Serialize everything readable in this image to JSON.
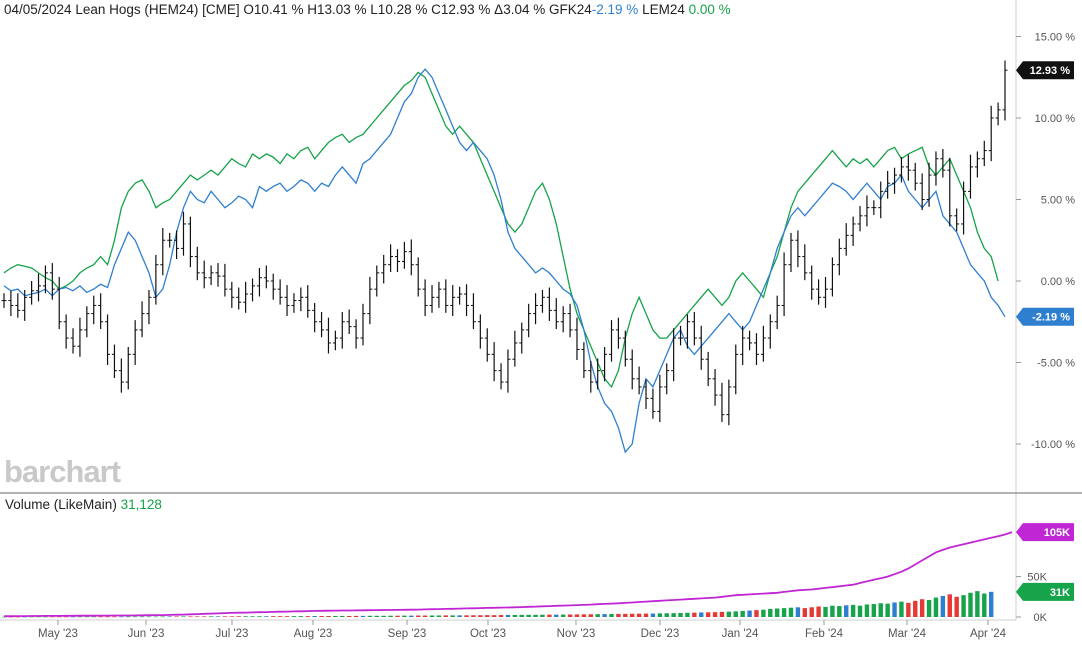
{
  "header": {
    "date": "04/05/2024",
    "name": "Lean Hogs (HEM24) [CME]",
    "open": "O10.41 %",
    "high": "H13.03 %",
    "low": "L10.28 %",
    "close": "C12.93 %",
    "change": "Δ3.04 %",
    "cmp1_label": "GFK24",
    "cmp1_value": "-2.19 %",
    "cmp2_label": "LEM24",
    "cmp2_value": "0.00 %"
  },
  "brand": "barchart",
  "volume_header": {
    "label": "Volume",
    "qualifier": "(LikeMain)",
    "value": "31,128"
  },
  "colors": {
    "price_bars": "#111111",
    "gfk24": "#2f7fd0",
    "lem24": "#16a34a",
    "open_interest": "#c026d3",
    "volume_up": "#16a34a",
    "volume_down": "#e53935",
    "volume_neutral": "#2f7fd0"
  },
  "chart_data": [
    {
      "type": "line",
      "name": "price-panel",
      "y_unit": "%",
      "ylim": [
        -12,
        16
      ],
      "y_ticks": [
        15,
        10,
        5,
        0,
        -5,
        -10
      ],
      "y_tick_labels": [
        "15.00 %",
        "10.00 %",
        "5.00 %",
        "0.00 %",
        "-5.00 %",
        "-10.00 %"
      ],
      "x_tick_labels": [
        "May '23",
        "Jun '23",
        "Jul '23",
        "Aug '23",
        "Sep '23",
        "Oct '23",
        "Nov '23",
        "Dec '23",
        "Jan '24",
        "Feb '24",
        "Mar '24",
        "Apr '24"
      ],
      "series": [
        {
          "name": "HEM24",
          "style": "ohlc",
          "values": [
            -1.2,
            -1.5,
            -1.8,
            -1.0,
            -0.6,
            -0.3,
            0.5,
            -0.5,
            -2.5,
            -3.5,
            -4.0,
            -3.0,
            -2.0,
            -1.5,
            -2.5,
            -4.5,
            -5.5,
            -6.2,
            -4.5,
            -3.0,
            -2.0,
            -1.0,
            1.0,
            2.5,
            2.5,
            2.0,
            3.5,
            1.5,
            0.5,
            0.2,
            0.5,
            0.3,
            -0.5,
            -1.0,
            -1.3,
            -0.8,
            -0.3,
            0.2,
            0.0,
            -0.5,
            -1.0,
            -1.5,
            -1.2,
            -1.0,
            -1.8,
            -2.5,
            -3.0,
            -3.8,
            -3.5,
            -2.5,
            -2.8,
            -3.5,
            -2.0,
            -0.5,
            0.5,
            1.0,
            1.5,
            1.2,
            1.8,
            1.0,
            -0.5,
            -1.5,
            -1.0,
            -0.5,
            -1.5,
            -1.0,
            -0.8,
            -1.5,
            -2.5,
            -3.5,
            -4.5,
            -5.5,
            -6.2,
            -4.8,
            -3.8,
            -3.0,
            -2.0,
            -1.5,
            -1.0,
            -1.8,
            -2.5,
            -2.0,
            -3.0,
            -4.2,
            -5.5,
            -6.2,
            -5.5,
            -4.5,
            -3.0,
            -3.5,
            -4.8,
            -6.0,
            -6.5,
            -7.2,
            -8.0,
            -6.5,
            -5.5,
            -3.5,
            -3.5,
            -2.5,
            -3.5,
            -4.8,
            -6.0,
            -7.0,
            -8.2,
            -6.5,
            -4.5,
            -3.5,
            -3.8,
            -4.5,
            -3.5,
            -2.5,
            -1.5,
            1.0,
            2.5,
            1.5,
            0.5,
            -0.5,
            -1.0,
            -0.5,
            1.0,
            2.0,
            2.8,
            3.5,
            4.0,
            4.5,
            4.5,
            5.5,
            6.0,
            6.5,
            7.0,
            6.8,
            6.0,
            5.0,
            6.5,
            7.5,
            6.8,
            4.0,
            3.5,
            5.5,
            7.0,
            7.5,
            8.0,
            10.0,
            10.5,
            12.93
          ],
          "last_label": "12.93 %"
        },
        {
          "name": "GFK24",
          "style": "line",
          "values": [
            -0.3,
            -0.6,
            -0.5,
            -0.9,
            -0.8,
            -0.7,
            -0.5,
            -0.9,
            -0.5,
            -0.4,
            -0.6,
            -0.3,
            -0.7,
            -0.5,
            -0.2,
            -0.4,
            1.0,
            2.0,
            3.0,
            2.5,
            1.5,
            0.5,
            -1.0,
            -0.5,
            1.0,
            3.0,
            4.5,
            5.5,
            5.0,
            4.8,
            5.5,
            5.0,
            4.5,
            4.8,
            5.2,
            5.0,
            4.5,
            5.8,
            5.5,
            5.8,
            6.0,
            5.5,
            5.8,
            6.2,
            6.0,
            5.5,
            6.0,
            5.8,
            6.5,
            7.0,
            6.5,
            6.0,
            7.2,
            7.5,
            8.0,
            8.5,
            9.0,
            10.0,
            11.0,
            11.5,
            12.5,
            13.0,
            12.5,
            11.5,
            10.5,
            9.5,
            8.5,
            8.0,
            8.5,
            8.0,
            7.5,
            6.5,
            5.0,
            3.0,
            2.0,
            1.5,
            1.0,
            0.5,
            0.8,
            0.5,
            0.0,
            -0.5,
            -0.8,
            -1.5,
            -3.0,
            -5.0,
            -6.5,
            -7.5,
            -8.0,
            -9.0,
            -10.5,
            -10.0,
            -7.5,
            -6.0,
            -6.5,
            -5.5,
            -4.5,
            -3.5,
            -3.0,
            -4.0,
            -4.5,
            -4.0,
            -3.5,
            -3.0,
            -2.5,
            -2.0,
            -2.5,
            -3.0,
            -2.5,
            -1.5,
            -0.5,
            0.5,
            2.0,
            3.0,
            4.0,
            4.5,
            4.0,
            4.5,
            5.0,
            5.5,
            6.0,
            5.8,
            5.5,
            5.0,
            5.5,
            6.0,
            5.5,
            5.0,
            5.8,
            6.0,
            6.5,
            5.5,
            5.0,
            4.5,
            5.0,
            5.5,
            4.0,
            3.5,
            3.0,
            2.0,
            1.0,
            0.5,
            0.0,
            -1.0,
            -1.5,
            -2.19
          ],
          "last_label": "-2.19 %"
        },
        {
          "name": "LEM24",
          "style": "line",
          "values": [
            0.5,
            0.8,
            1.0,
            0.9,
            0.8,
            0.5,
            0.2,
            0.0,
            -0.5,
            -0.3,
            0.0,
            0.5,
            0.8,
            1.0,
            1.5,
            1.0,
            2.5,
            4.5,
            5.5,
            6.0,
            6.2,
            5.5,
            4.5,
            4.8,
            5.0,
            5.5,
            6.0,
            6.5,
            6.2,
            6.5,
            6.8,
            6.5,
            7.0,
            7.5,
            7.2,
            7.0,
            7.8,
            7.5,
            7.8,
            7.6,
            7.2,
            7.8,
            7.5,
            8.0,
            8.2,
            7.5,
            8.0,
            8.5,
            8.8,
            9.0,
            8.5,
            8.8,
            9.0,
            9.5,
            10.0,
            10.5,
            11.0,
            11.5,
            12.0,
            12.3,
            12.8,
            12.5,
            11.5,
            10.5,
            9.5,
            9.0,
            9.5,
            9.0,
            8.5,
            7.5,
            6.5,
            5.5,
            4.5,
            3.5,
            3.0,
            3.5,
            4.5,
            5.5,
            6.0,
            5.0,
            3.5,
            1.5,
            -0.5,
            -2.0,
            -3.0,
            -4.0,
            -5.0,
            -6.0,
            -6.5,
            -5.5,
            -3.5,
            -2.0,
            -1.0,
            -2.0,
            -3.0,
            -3.5,
            -3.5,
            -3.0,
            -2.5,
            -2.0,
            -1.5,
            -1.0,
            -0.5,
            -1.0,
            -1.5,
            -1.0,
            0.0,
            0.5,
            0.0,
            -0.5,
            -1.0,
            0.5,
            1.5,
            3.0,
            4.5,
            5.5,
            6.0,
            6.5,
            7.0,
            7.5,
            8.0,
            7.5,
            7.0,
            7.5,
            7.2,
            7.5,
            7.0,
            7.5,
            8.0,
            8.2,
            7.5,
            7.8,
            8.0,
            8.2,
            7.0,
            6.5,
            7.0,
            7.5,
            6.5,
            5.5,
            4.5,
            3.0,
            2.0,
            1.5,
            0.0
          ],
          "last_label": "0.00 %"
        }
      ]
    },
    {
      "type": "bar",
      "name": "volume-panel",
      "ylim": [
        0,
        120000
      ],
      "y_ticks": [
        0,
        50000
      ],
      "y_tick_labels": [
        "0K",
        "50K"
      ],
      "series": [
        {
          "name": "Volume",
          "values": [
            300,
            300,
            300,
            300,
            400,
            400,
            400,
            400,
            400,
            400,
            400,
            500,
            500,
            500,
            500,
            500,
            500,
            500,
            600,
            600,
            600,
            600,
            600,
            600,
            700,
            700,
            700,
            700,
            700,
            700,
            800,
            800,
            800,
            800,
            900,
            900,
            900,
            900,
            900,
            1000,
            1000,
            1000,
            1100,
            1100,
            1100,
            1200,
            1200,
            1200,
            1300,
            1300,
            1300,
            1400,
            1400,
            1500,
            1500,
            1500,
            1600,
            1600,
            1700,
            1700,
            1800,
            1800,
            1900,
            1900,
            2000,
            2000,
            2100,
            2100,
            2200,
            2200,
            2300,
            2300,
            2400,
            2500,
            2500,
            2600,
            2700,
            2700,
            2800,
            2900,
            2900,
            3000,
            3100,
            3200,
            3300,
            3400,
            3500,
            3600,
            3700,
            3800,
            3900,
            4000,
            4100,
            4200,
            4300,
            4500,
            4600,
            4800,
            5000,
            5200,
            5400,
            5600,
            5800,
            6000,
            6300,
            6600,
            7000,
            7500,
            8000,
            8500,
            9000,
            10000,
            10500,
            11000,
            11500,
            12000,
            11000,
            12000,
            13000,
            12500,
            14000,
            13500,
            14500,
            15000,
            14000,
            15500,
            16000,
            17000,
            16500,
            18000,
            19000,
            17500,
            20000,
            22000,
            21000,
            24000,
            26000,
            28000,
            25000,
            27000,
            30000,
            32000,
            29000,
            31128
          ],
          "last_label": "31K"
        },
        {
          "name": "Open Interest",
          "style": "line",
          "values": [
            1000,
            1050,
            1100,
            1150,
            1200,
            1250,
            1300,
            1350,
            1400,
            1450,
            1500,
            1550,
            1600,
            1650,
            1700,
            1750,
            1800,
            1850,
            1900,
            2000,
            2100,
            2200,
            2300,
            2400,
            2600,
            2800,
            3000,
            3300,
            3600,
            3900,
            4200,
            4500,
            4800,
            5100,
            5300,
            5500,
            5700,
            5900,
            6100,
            6300,
            6500,
            6700,
            6900,
            7100,
            7300,
            7500,
            7700,
            7800,
            7900,
            8000,
            8100,
            8200,
            8300,
            8400,
            8500,
            8600,
            8700,
            8800,
            8900,
            9000,
            9200,
            9400,
            9600,
            9800,
            10000,
            10200,
            10400,
            10600,
            10800,
            11000,
            11200,
            11400,
            11600,
            11800,
            12000,
            12300,
            12600,
            12900,
            13200,
            13500,
            13800,
            14100,
            14400,
            14700,
            15000,
            15400,
            15800,
            16200,
            16600,
            17000,
            17500,
            18000,
            18500,
            19000,
            19500,
            20000,
            20500,
            21000,
            21500,
            22000,
            22500,
            23000,
            23500,
            24000,
            25000,
            26000,
            27000,
            27500,
            28000,
            28500,
            29000,
            29500,
            30000,
            31000,
            32000,
            33000,
            33500,
            34000,
            35000,
            36000,
            37000,
            38000,
            39000,
            40000,
            42000,
            44000,
            46000,
            48000,
            50000,
            53000,
            56000,
            60000,
            65000,
            70000,
            75000,
            80000,
            83000,
            86000,
            88000,
            90000,
            92000,
            94000,
            96000,
            98000,
            100000,
            102000,
            105000
          ],
          "last_label": "105K"
        }
      ]
    }
  ]
}
